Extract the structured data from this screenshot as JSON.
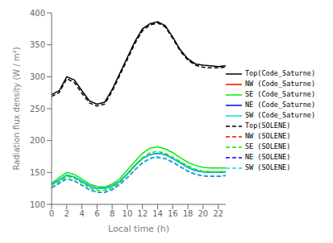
{
  "chart_data": {
    "type": "line",
    "title": "",
    "xlabel": "Local time (h)",
    "ylabel": "Radiation flux density (W / m²)",
    "x": [
      0,
      1,
      2,
      3,
      4,
      5,
      6,
      7,
      8,
      9,
      10,
      11,
      12,
      13,
      14,
      15,
      16,
      17,
      18,
      19,
      20,
      21,
      22,
      23
    ],
    "xlim": [
      0,
      23
    ],
    "ylim": [
      100,
      400
    ],
    "xticks": [
      0,
      2,
      4,
      6,
      8,
      10,
      12,
      14,
      16,
      18,
      20,
      22
    ],
    "yticks": [
      100,
      150,
      200,
      250,
      300,
      350,
      400
    ],
    "grid": false,
    "legend": "right",
    "series": [
      {
        "name": "Top(Code_Saturne)",
        "color": "#000000",
        "line_style": "solid",
        "values": [
          272,
          278,
          300,
          295,
          278,
          262,
          257,
          260,
          280,
          305,
          330,
          355,
          375,
          383,
          386,
          380,
          362,
          342,
          328,
          320,
          318,
          317,
          316,
          317
        ]
      },
      {
        "name": "NW (Code_Saturne)",
        "color": "#ff0000",
        "line_style": "solid",
        "values": [
          131,
          138,
          146,
          143,
          136,
          129,
          125,
          125,
          129,
          136,
          148,
          161,
          172,
          178,
          180,
          178,
          172,
          165,
          158,
          153,
          151,
          150,
          150,
          151
        ]
      },
      {
        "name": "SE (Code_Saturne)",
        "color": "#00ee00",
        "line_style": "solid",
        "values": [
          133,
          142,
          150,
          147,
          140,
          132,
          128,
          127,
          132,
          140,
          154,
          167,
          180,
          188,
          190,
          187,
          181,
          173,
          166,
          161,
          158,
          157,
          157,
          157
        ]
      },
      {
        "name": "NE (Code_Saturne)",
        "color": "#0000ff",
        "line_style": "solid",
        "values": [
          131,
          138,
          146,
          143,
          136,
          129,
          125,
          125,
          129,
          136,
          148,
          161,
          172,
          178,
          180,
          178,
          172,
          165,
          158,
          153,
          151,
          150,
          150,
          151
        ]
      },
      {
        "name": "SW (Code_Saturne)",
        "color": "#00dddd",
        "line_style": "solid",
        "values": [
          131,
          138,
          146,
          143,
          136,
          129,
          125,
          125,
          129,
          136,
          148,
          161,
          172,
          178,
          180,
          178,
          172,
          165,
          158,
          153,
          151,
          150,
          150,
          151
        ]
      },
      {
        "name": "Top(SOLENE)",
        "color": "#000000",
        "line_style": "dashed",
        "values": [
          269,
          275,
          297,
          291,
          274,
          259,
          254,
          257,
          277,
          302,
          327,
          352,
          372,
          381,
          384,
          378,
          360,
          340,
          326,
          318,
          315,
          314,
          314,
          315
        ]
      },
      {
        "name": "NW (SOLENE)",
        "color": "#ff0000",
        "line_style": "dashed",
        "values": [
          126,
          133,
          140,
          137,
          130,
          123,
          119,
          119,
          123,
          131,
          142,
          154,
          165,
          172,
          174,
          172,
          166,
          159,
          152,
          147,
          145,
          144,
          144,
          145
        ]
      },
      {
        "name": "SE (SOLENE)",
        "color": "#00ee00",
        "line_style": "dashed",
        "values": [
          127,
          135,
          144,
          141,
          134,
          126,
          122,
          122,
          126,
          134,
          147,
          160,
          173,
          181,
          183,
          180,
          174,
          167,
          160,
          155,
          152,
          151,
          151,
          152
        ]
      },
      {
        "name": "NE (SOLENE)",
        "color": "#0000ff",
        "line_style": "dashed",
        "values": [
          126,
          133,
          140,
          137,
          130,
          123,
          119,
          119,
          123,
          131,
          142,
          154,
          165,
          172,
          174,
          172,
          166,
          159,
          152,
          147,
          145,
          144,
          144,
          145
        ]
      },
      {
        "name": "SW (SOLENE)",
        "color": "#00dddd",
        "line_style": "dashed",
        "values": [
          126,
          133,
          140,
          137,
          130,
          123,
          119,
          119,
          123,
          131,
          142,
          154,
          165,
          172,
          174,
          172,
          166,
          159,
          152,
          147,
          145,
          144,
          144,
          145
        ]
      }
    ]
  }
}
